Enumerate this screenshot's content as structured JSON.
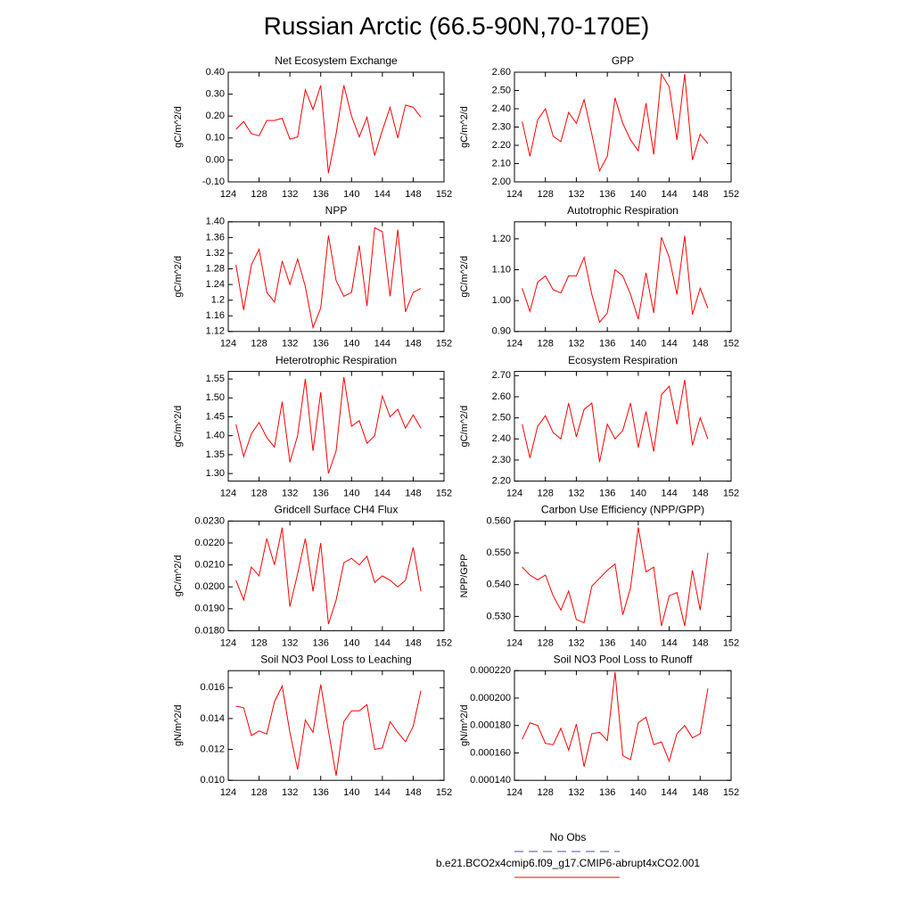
{
  "title": "Russian Arctic (66.5-90N,70-170E)",
  "legend": [
    {
      "name": "No Obs",
      "color": "#4a4acc",
      "dashed": true
    },
    {
      "name": "b.e21.BCO2x4cmip6.f09_g17.CMIP6-abrupt4xCO2.001",
      "color": "#ff0000",
      "dashed": false
    }
  ],
  "chart_data": [
    {
      "type": "line",
      "title": "Net Ecosystem Exchange",
      "y_label": "gC/m^2/d",
      "color": "#ff0000",
      "x": [
        125,
        126,
        127,
        128,
        129,
        130,
        131,
        132,
        133,
        134,
        135,
        136,
        137,
        138,
        139,
        140,
        141,
        142,
        143,
        144,
        145,
        146,
        147,
        148,
        149
      ],
      "values": [
        0.14,
        0.175,
        0.12,
        0.11,
        0.18,
        0.18,
        0.19,
        0.095,
        0.105,
        0.32,
        0.23,
        0.34,
        -0.06,
        0.12,
        0.34,
        0.2,
        0.105,
        0.195,
        0.02,
        0.135,
        0.24,
        0.1,
        0.25,
        0.24,
        0.195
      ],
      "xlim": [
        124,
        152
      ],
      "xticks": [
        124,
        128,
        132,
        136,
        140,
        144,
        148,
        152
      ],
      "ylim": [
        -0.1,
        0.4
      ],
      "yticks": [
        {
          "value": -0.1,
          "label": "-0.10"
        },
        {
          "value": 0,
          "label": "0.00"
        },
        {
          "value": 0.1,
          "label": "0.10"
        },
        {
          "value": 0.2,
          "label": "0.20"
        },
        {
          "value": 0.3,
          "label": "0.30"
        },
        {
          "value": 0.4,
          "label": "0.40"
        }
      ]
    },
    {
      "type": "line",
      "title": "GPP",
      "y_label": "gC/m^2/d",
      "color": "#ff0000",
      "x": [
        125,
        126,
        127,
        128,
        129,
        130,
        131,
        132,
        133,
        134,
        135,
        136,
        137,
        138,
        139,
        140,
        141,
        142,
        143,
        144,
        145,
        146,
        147,
        148,
        149
      ],
      "values": [
        2.33,
        2.14,
        2.34,
        2.4,
        2.25,
        2.22,
        2.38,
        2.32,
        2.45,
        2.26,
        2.06,
        2.14,
        2.46,
        2.32,
        2.23,
        2.17,
        2.43,
        2.15,
        2.59,
        2.52,
        2.23,
        2.59,
        2.12,
        2.26,
        2.21
      ],
      "xlim": [
        124,
        152
      ],
      "xticks": [
        124,
        128,
        132,
        136,
        140,
        144,
        148,
        152
      ],
      "ylim": [
        2.0,
        2.6
      ],
      "yticks": [
        {
          "value": 2.0,
          "label": "2.00"
        },
        {
          "value": 2.1,
          "label": "2.10"
        },
        {
          "value": 2.2,
          "label": "2.20"
        },
        {
          "value": 2.3,
          "label": "2.30"
        },
        {
          "value": 2.4,
          "label": "2.40"
        },
        {
          "value": 2.5,
          "label": "2.50"
        },
        {
          "value": 2.6,
          "label": "2.60"
        }
      ]
    },
    {
      "type": "line",
      "title": "NPP",
      "y_label": "gC/m^2/d",
      "color": "#ff0000",
      "x": [
        125,
        126,
        127,
        128,
        129,
        130,
        131,
        132,
        133,
        134,
        135,
        136,
        137,
        138,
        139,
        140,
        141,
        142,
        143,
        144,
        145,
        146,
        147,
        148,
        149
      ],
      "values": [
        1.29,
        1.175,
        1.29,
        1.33,
        1.22,
        1.195,
        1.3,
        1.24,
        1.305,
        1.235,
        1.13,
        1.18,
        1.365,
        1.25,
        1.21,
        1.22,
        1.34,
        1.185,
        1.385,
        1.375,
        1.21,
        1.38,
        1.17,
        1.22,
        1.23
      ],
      "xlim": [
        124,
        152
      ],
      "xticks": [
        124,
        128,
        132,
        136,
        140,
        144,
        148,
        152
      ],
      "ylim": [
        1.12,
        1.4
      ],
      "yticks": [
        1.12,
        1.16,
        1.2,
        1.24,
        1.28,
        1.32,
        1.36,
        {
          "value": 1.4,
          "label": "1.40"
        }
      ]
    },
    {
      "type": "line",
      "title": "Autotrophic Respiration",
      "y_label": "gC/m^2/d",
      "color": "#ff0000",
      "x": [
        125,
        126,
        127,
        128,
        129,
        130,
        131,
        132,
        133,
        134,
        135,
        136,
        137,
        138,
        139,
        140,
        141,
        142,
        143,
        144,
        145,
        146,
        147,
        148,
        149
      ],
      "values": [
        1.04,
        0.965,
        1.06,
        1.08,
        1.035,
        1.025,
        1.08,
        1.08,
        1.14,
        1.02,
        0.93,
        0.96,
        1.1,
        1.08,
        1.02,
        0.94,
        1.09,
        0.96,
        1.205,
        1.14,
        1.02,
        1.21,
        0.955,
        1.04,
        0.975
      ],
      "xlim": [
        124,
        152
      ],
      "xticks": [
        124,
        128,
        132,
        136,
        140,
        144,
        148,
        152
      ],
      "ylim": [
        0.9,
        1.255
      ],
      "yticks": [
        {
          "value": 0.9,
          "label": "0.90"
        },
        {
          "value": 1.0,
          "label": "1.00"
        },
        {
          "value": 1.1,
          "label": "1.10"
        },
        {
          "value": 1.2,
          "label": "1.20"
        }
      ]
    },
    {
      "type": "line",
      "title": "Heterotrophic Respiration",
      "y_label": "gC/m^2/d",
      "color": "#ff0000",
      "x": [
        125,
        126,
        127,
        128,
        129,
        130,
        131,
        132,
        133,
        134,
        135,
        136,
        137,
        138,
        139,
        140,
        141,
        142,
        143,
        144,
        145,
        146,
        147,
        148,
        149
      ],
      "values": [
        1.43,
        1.345,
        1.405,
        1.435,
        1.395,
        1.37,
        1.49,
        1.33,
        1.4,
        1.55,
        1.36,
        1.515,
        1.3,
        1.36,
        1.555,
        1.425,
        1.44,
        1.38,
        1.4,
        1.505,
        1.45,
        1.47,
        1.42,
        1.455,
        1.42
      ],
      "xlim": [
        124,
        152
      ],
      "xticks": [
        124,
        128,
        132,
        136,
        140,
        144,
        148,
        152
      ],
      "ylim": [
        1.28,
        1.57
      ],
      "yticks": [
        {
          "value": 1.3,
          "label": "1.30"
        },
        1.35,
        {
          "value": 1.4,
          "label": "1.40"
        },
        1.45,
        {
          "value": 1.5,
          "label": "1.50"
        },
        1.55
      ]
    },
    {
      "type": "line",
      "title": "Ecosystem Respiration",
      "y_label": "gC/m^2/d",
      "color": "#ff0000",
      "x": [
        125,
        126,
        127,
        128,
        129,
        130,
        131,
        132,
        133,
        134,
        135,
        136,
        137,
        138,
        139,
        140,
        141,
        142,
        143,
        144,
        145,
        146,
        147,
        148,
        149
      ],
      "values": [
        2.47,
        2.31,
        2.46,
        2.51,
        2.43,
        2.4,
        2.57,
        2.41,
        2.54,
        2.57,
        2.29,
        2.47,
        2.4,
        2.44,
        2.57,
        2.36,
        2.53,
        2.34,
        2.61,
        2.65,
        2.47,
        2.68,
        2.37,
        2.5,
        2.4
      ],
      "xlim": [
        124,
        152
      ],
      "xticks": [
        124,
        128,
        132,
        136,
        140,
        144,
        148,
        152
      ],
      "ylim": [
        2.2,
        2.72
      ],
      "yticks": [
        {
          "value": 2.2,
          "label": "2.20"
        },
        {
          "value": 2.3,
          "label": "2.30"
        },
        {
          "value": 2.4,
          "label": "2.40"
        },
        {
          "value": 2.5,
          "label": "2.50"
        },
        {
          "value": 2.6,
          "label": "2.60"
        },
        {
          "value": 2.7,
          "label": "2.70"
        }
      ]
    },
    {
      "type": "line",
      "title": "Gridcell Surface CH4 Flux",
      "y_label": "gC/m^2/d",
      "color": "#ff0000",
      "x": [
        125,
        126,
        127,
        128,
        129,
        130,
        131,
        132,
        133,
        134,
        135,
        136,
        137,
        138,
        139,
        140,
        141,
        142,
        143,
        144,
        145,
        146,
        147,
        148,
        149
      ],
      "values": [
        0.0203,
        0.0194,
        0.0209,
        0.0205,
        0.0222,
        0.021,
        0.0227,
        0.0191,
        0.0206,
        0.0222,
        0.0198,
        0.022,
        0.0183,
        0.0194,
        0.0211,
        0.0213,
        0.021,
        0.0214,
        0.0202,
        0.0205,
        0.0203,
        0.02,
        0.0203,
        0.0218,
        0.0198
      ],
      "xlim": [
        124,
        152
      ],
      "xticks": [
        124,
        128,
        132,
        136,
        140,
        144,
        148,
        152
      ],
      "ylim": [
        0.018,
        0.023
      ],
      "yticks": [
        {
          "value": 0.018,
          "label": "0.0180"
        },
        {
          "value": 0.019,
          "label": "0.0190"
        },
        {
          "value": 0.02,
          "label": "0.0200"
        },
        {
          "value": 0.021,
          "label": "0.0210"
        },
        {
          "value": 0.022,
          "label": "0.0220"
        },
        {
          "value": 0.023,
          "label": "0.0230"
        }
      ]
    },
    {
      "type": "line",
      "title": "Carbon Use Efficiency (NPP/GPP)",
      "y_label": "NPP/GPP",
      "color": "#ff0000",
      "x": [
        125,
        126,
        127,
        128,
        129,
        130,
        131,
        132,
        133,
        134,
        135,
        136,
        137,
        138,
        139,
        140,
        141,
        142,
        143,
        144,
        145,
        146,
        147,
        148,
        149
      ],
      "values": [
        0.5455,
        0.543,
        0.5415,
        0.543,
        0.5365,
        0.532,
        0.538,
        0.529,
        0.528,
        0.5395,
        0.542,
        0.5445,
        0.5465,
        0.5305,
        0.539,
        0.558,
        0.544,
        0.5455,
        0.527,
        0.5365,
        0.5375,
        0.527,
        0.5445,
        0.532,
        0.55
      ],
      "xlim": [
        124,
        152
      ],
      "xticks": [
        124,
        128,
        132,
        136,
        140,
        144,
        148,
        152
      ],
      "ylim": [
        0.5255,
        0.56
      ],
      "yticks": [
        {
          "value": 0.53,
          "label": "0.530"
        },
        {
          "value": 0.54,
          "label": "0.540"
        },
        {
          "value": 0.55,
          "label": "0.550"
        },
        {
          "value": 0.56,
          "label": "0.560"
        }
      ]
    },
    {
      "type": "line",
      "title": "Soil NO3 Pool Loss to Leaching",
      "y_label": "gN/m^2/d",
      "color": "#ff0000",
      "x": [
        125,
        126,
        127,
        128,
        129,
        130,
        131,
        132,
        133,
        134,
        135,
        136,
        137,
        138,
        139,
        140,
        141,
        142,
        143,
        144,
        145,
        146,
        147,
        148,
        149
      ],
      "values": [
        0.0148,
        0.0147,
        0.0129,
        0.0132,
        0.013,
        0.0151,
        0.0161,
        0.0131,
        0.0107,
        0.0139,
        0.0131,
        0.0162,
        0.0132,
        0.0103,
        0.0138,
        0.0145,
        0.0145,
        0.0149,
        0.012,
        0.0121,
        0.0138,
        0.0131,
        0.0125,
        0.0135,
        0.0158
      ],
      "xlim": [
        124,
        152
      ],
      "xticks": [
        124,
        128,
        132,
        136,
        140,
        144,
        148,
        152
      ],
      "ylim": [
        0.01,
        0.0171
      ],
      "yticks": [
        {
          "value": 0.01,
          "label": "0.010"
        },
        0.012,
        0.014,
        0.016
      ]
    },
    {
      "type": "line",
      "title": "Soil NO3 Pool Loss to Runoff",
      "y_label": "gN/m^2/d",
      "color": "#ff0000",
      "x": [
        125,
        126,
        127,
        128,
        129,
        130,
        131,
        132,
        133,
        134,
        135,
        136,
        137,
        138,
        139,
        140,
        141,
        142,
        143,
        144,
        145,
        146,
        147,
        148,
        149
      ],
      "values": [
        0.00017,
        0.000182,
        0.00018,
        0.000167,
        0.000166,
        0.000178,
        0.000162,
        0.000181,
        0.00015,
        0.000174,
        0.000175,
        0.000169,
        0.000219,
        0.000158,
        0.000155,
        0.000182,
        0.000186,
        0.000166,
        0.000168,
        0.000154,
        0.000174,
        0.00018,
        0.000171,
        0.000174,
        0.000207
      ],
      "xlim": [
        124,
        152
      ],
      "xticks": [
        124,
        128,
        132,
        136,
        140,
        144,
        148,
        152
      ],
      "ylim": [
        0.00014,
        0.00022
      ],
      "yticks": [
        {
          "value": 0.00014,
          "label": "0.000140"
        },
        {
          "value": 0.00016,
          "label": "0.000160"
        },
        {
          "value": 0.00018,
          "label": "0.000180"
        },
        {
          "value": 0.0002,
          "label": "0.000200"
        },
        {
          "value": 0.00022,
          "label": "0.000220"
        }
      ]
    }
  ]
}
